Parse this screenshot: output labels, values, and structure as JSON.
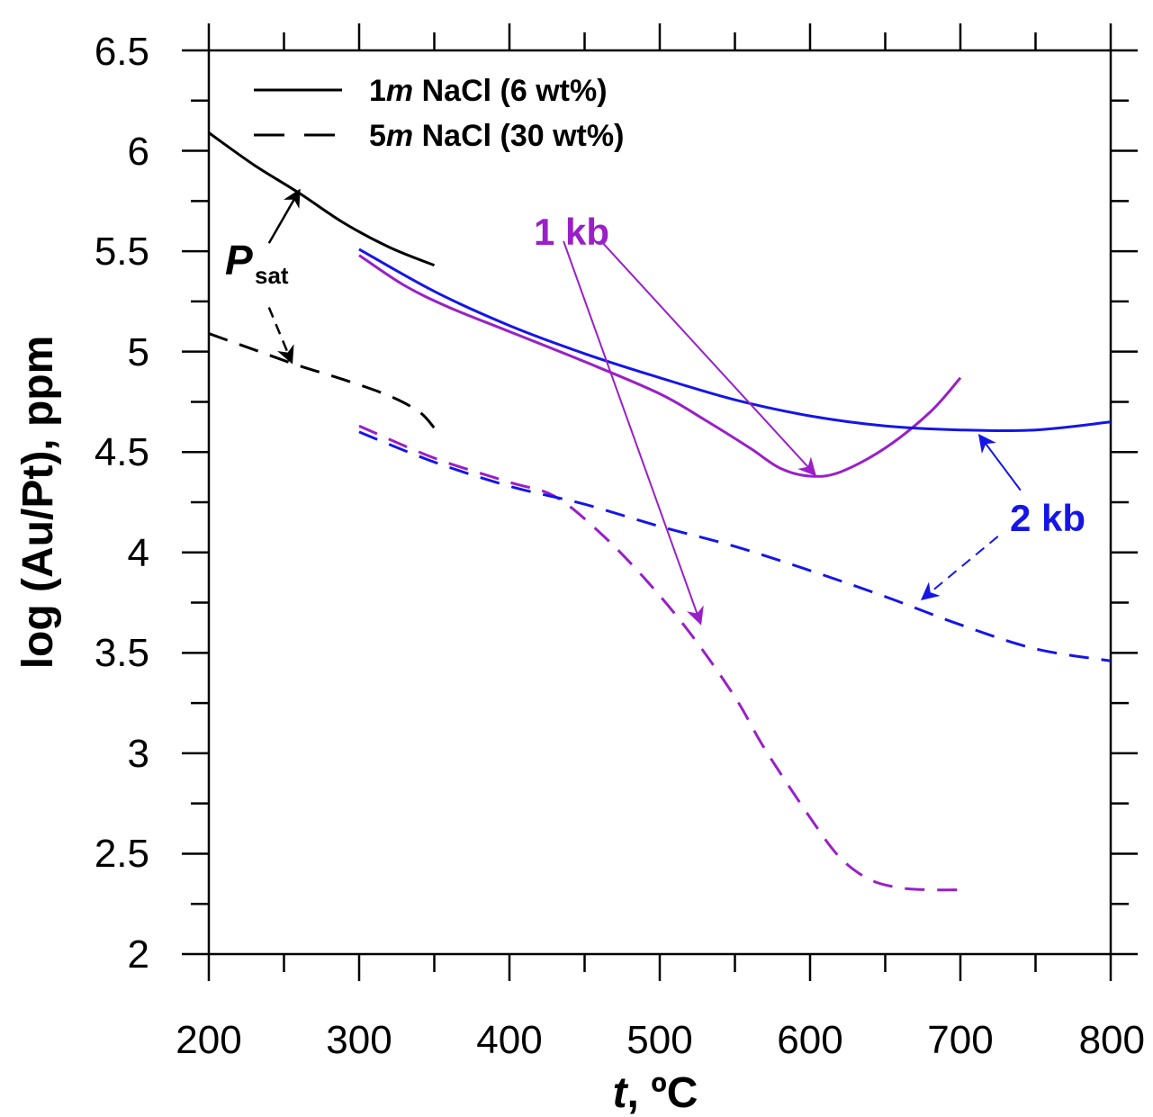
{
  "chart_data": {
    "type": "line",
    "title": "",
    "xlabel": {
      "italic": "t",
      "rest": ", ºC"
    },
    "ylabel": "log (Au/Pt), ppm",
    "xlim": [
      200,
      800
    ],
    "ylim": [
      2,
      6.5
    ],
    "x_ticks": [
      "200",
      "300",
      "400",
      "500",
      "600",
      "700",
      "800"
    ],
    "y_ticks": [
      "2",
      "2.5",
      "3",
      "3.5",
      "4",
      "4.5",
      "5",
      "5.5",
      "6",
      "6.5"
    ],
    "grid": false,
    "legend": {
      "position": "top-left",
      "entries": [
        {
          "prefix": "1",
          "italic": "m",
          "rest": " NaCl (6 wt%)",
          "dash": "solid"
        },
        {
          "prefix": "5",
          "italic": "m",
          "rest": " NaCl (30 wt%)",
          "dash": "dashed"
        }
      ]
    },
    "colors": {
      "psat": "#000000",
      "kb1": "#9a1fc8",
      "kb2": "#1515e8"
    },
    "series": [
      {
        "group": "psat",
        "style": "solid",
        "x": [
          200,
          230,
          260,
          290,
          320,
          350
        ],
        "y": [
          6.09,
          5.93,
          5.79,
          5.64,
          5.52,
          5.43
        ]
      },
      {
        "group": "psat",
        "style": "dashed",
        "x": [
          200,
          230,
          260,
          290,
          320,
          340,
          350
        ],
        "y": [
          5.09,
          5.01,
          4.93,
          4.86,
          4.78,
          4.7,
          4.62
        ]
      },
      {
        "group": "kb1",
        "style": "solid",
        "x": [
          300,
          330,
          360,
          400,
          450,
          500,
          530,
          560,
          580,
          600,
          620,
          650,
          680,
          700
        ],
        "y": [
          5.48,
          5.33,
          5.22,
          5.1,
          4.95,
          4.79,
          4.66,
          4.52,
          4.42,
          4.38,
          4.4,
          4.52,
          4.7,
          4.87
        ]
      },
      {
        "group": "kb2",
        "style": "solid",
        "x": [
          300,
          350,
          400,
          450,
          500,
          550,
          600,
          650,
          700,
          750,
          800
        ],
        "y": [
          5.51,
          5.3,
          5.13,
          4.99,
          4.87,
          4.76,
          4.68,
          4.63,
          4.61,
          4.61,
          4.65
        ]
      },
      {
        "group": "kb1",
        "style": "dashed",
        "x": [
          300,
          350,
          400,
          430,
          460,
          490,
          520,
          550,
          570,
          600,
          620,
          640,
          660,
          680,
          700
        ],
        "y": [
          4.63,
          4.47,
          4.35,
          4.28,
          4.1,
          3.87,
          3.6,
          3.28,
          3.02,
          2.68,
          2.48,
          2.37,
          2.33,
          2.32,
          2.32
        ]
      },
      {
        "group": "kb2",
        "style": "dashed",
        "x": [
          300,
          350,
          400,
          450,
          500,
          550,
          600,
          650,
          700,
          750,
          800
        ],
        "y": [
          4.6,
          4.45,
          4.33,
          4.24,
          4.13,
          4.03,
          3.91,
          3.78,
          3.64,
          3.52,
          3.46
        ]
      }
    ],
    "annotations": {
      "psat": {
        "text": "P",
        "sub": "sat"
      },
      "kb1": {
        "text": "1 kb"
      },
      "kb2": {
        "text": "2 kb"
      }
    },
    "arrows": [
      {
        "group": "psat",
        "style": "solid",
        "from": [
          240,
          5.54
        ],
        "to": [
          260,
          5.8
        ]
      },
      {
        "group": "psat",
        "style": "dashed",
        "from": [
          240,
          5.22
        ],
        "to": [
          255,
          4.95
        ]
      },
      {
        "group": "kb1",
        "style": "solid",
        "from": [
          461,
          5.55
        ],
        "to": [
          603,
          4.39
        ]
      },
      {
        "group": "kb1",
        "style": "solid",
        "from": [
          436,
          5.55
        ],
        "to": [
          527,
          3.65
        ]
      },
      {
        "group": "kb2",
        "style": "solid",
        "from": [
          740,
          4.31
        ],
        "to": [
          713,
          4.58
        ]
      },
      {
        "group": "kb2",
        "style": "dashed",
        "from": [
          725,
          4.08
        ],
        "to": [
          675,
          3.77
        ]
      }
    ]
  }
}
